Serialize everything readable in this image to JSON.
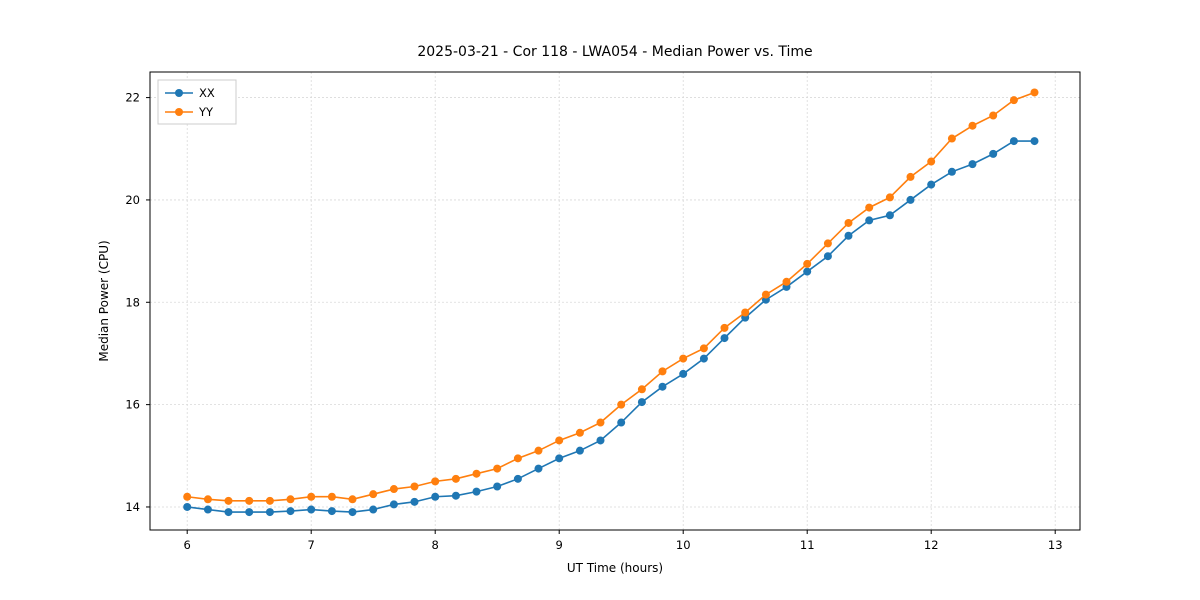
{
  "chart_data": {
    "type": "line",
    "title": "2025-03-21 - Cor 118 - LWA054 - Median Power vs. Time",
    "xlabel": "UT Time (hours)",
    "ylabel": "Median Power (CPU)",
    "xlim": [
      5.7,
      13.2
    ],
    "ylim": [
      13.55,
      22.5
    ],
    "xticks": [
      6,
      7,
      8,
      9,
      10,
      11,
      12,
      13
    ],
    "yticks": [
      14,
      16,
      18,
      20,
      22
    ],
    "grid": true,
    "legend_position": "upper left",
    "x": [
      6.0,
      6.167,
      6.333,
      6.5,
      6.667,
      6.833,
      7.0,
      7.167,
      7.333,
      7.5,
      7.667,
      7.833,
      8.0,
      8.167,
      8.333,
      8.5,
      8.667,
      8.833,
      9.0,
      9.167,
      9.333,
      9.5,
      9.667,
      9.833,
      10.0,
      10.167,
      10.333,
      10.5,
      10.667,
      10.833,
      11.0,
      11.167,
      11.333,
      11.5,
      11.667,
      11.833,
      12.0,
      12.167,
      12.333,
      12.5,
      12.667,
      12.833
    ],
    "series": [
      {
        "name": "XX",
        "color": "#1f77b4",
        "values": [
          14.0,
          13.95,
          13.9,
          13.9,
          13.9,
          13.92,
          13.95,
          13.92,
          13.9,
          13.95,
          14.05,
          14.1,
          14.2,
          14.22,
          14.3,
          14.4,
          14.55,
          14.75,
          14.95,
          15.1,
          15.3,
          15.65,
          16.05,
          16.35,
          16.6,
          16.9,
          17.3,
          17.7,
          18.05,
          18.3,
          18.6,
          18.9,
          19.3,
          19.6,
          19.7,
          20.0,
          20.3,
          20.55,
          20.7,
          20.9,
          21.15,
          21.15
        ]
      },
      {
        "name": "YY",
        "color": "#ff7f0e",
        "values": [
          14.2,
          14.15,
          14.12,
          14.12,
          14.12,
          14.15,
          14.2,
          14.2,
          14.15,
          14.25,
          14.35,
          14.4,
          14.5,
          14.55,
          14.65,
          14.75,
          14.95,
          15.1,
          15.3,
          15.45,
          15.65,
          16.0,
          16.3,
          16.65,
          16.9,
          17.1,
          17.5,
          17.8,
          18.15,
          18.4,
          18.75,
          19.15,
          19.55,
          19.85,
          20.05,
          20.45,
          20.75,
          21.2,
          21.45,
          21.65,
          21.95,
          22.1
        ]
      }
    ]
  }
}
